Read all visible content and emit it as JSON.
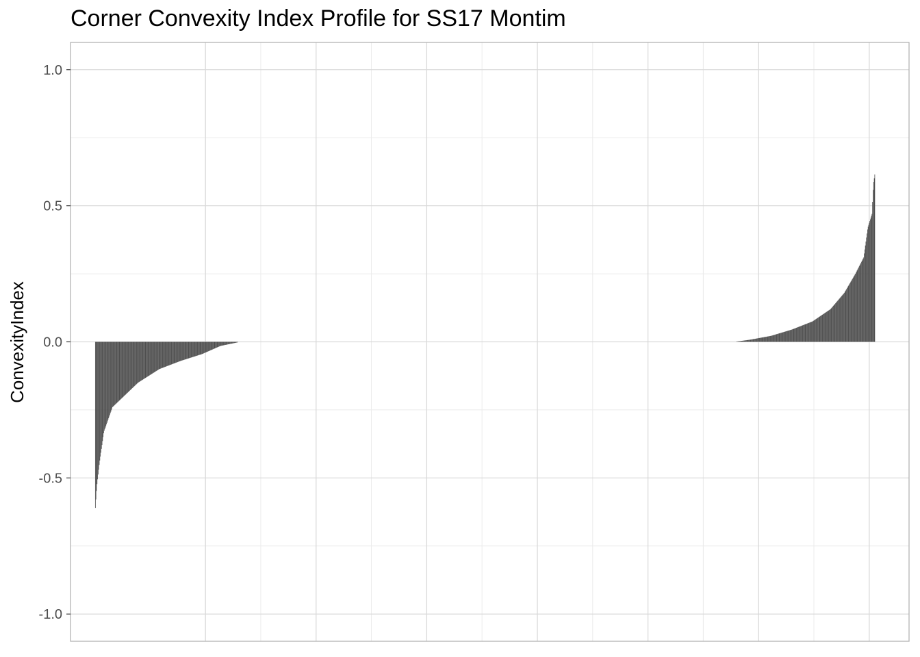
{
  "chart_data": {
    "type": "bar",
    "title": "Corner Convexity Index Profile for SS17 Montim",
    "xlabel": "",
    "ylabel": "ConvexityIndex",
    "ylim": [
      -1.1,
      1.1
    ],
    "xlim": [
      -44,
      1472
    ],
    "yticks": [
      -1.0,
      -0.5,
      0.0,
      0.5,
      1.0
    ],
    "ytick_labels": [
      "-1.0",
      "-0.5",
      "0.0",
      "0.5",
      "1.0"
    ],
    "x_gridlines": [
      200,
      400,
      600,
      800,
      1000,
      1200,
      1400
    ],
    "grid": true,
    "bar_color": "#4d4d4d",
    "x_count": 1410,
    "negative_segment": {
      "start_index": 1,
      "end_index": 258,
      "points": [
        [
          0,
          -0.61
        ],
        [
          0.01,
          -0.53
        ],
        [
          0.03,
          -0.44
        ],
        [
          0.06,
          -0.33
        ],
        [
          0.12,
          -0.24
        ],
        [
          0.2,
          -0.2
        ],
        [
          0.3,
          -0.15
        ],
        [
          0.45,
          -0.1
        ],
        [
          0.6,
          -0.07
        ],
        [
          0.75,
          -0.045
        ],
        [
          0.88,
          -0.015
        ],
        [
          1,
          -0.002
        ]
      ]
    },
    "positive_segment": {
      "start_index": 1160,
      "end_index": 1410,
      "points": [
        [
          0,
          0.001
        ],
        [
          0.1,
          0.008
        ],
        [
          0.25,
          0.022
        ],
        [
          0.4,
          0.045
        ],
        [
          0.55,
          0.075
        ],
        [
          0.68,
          0.12
        ],
        [
          0.78,
          0.18
        ],
        [
          0.86,
          0.25
        ],
        [
          0.92,
          0.31
        ],
        [
          0.95,
          0.42
        ],
        [
          0.98,
          0.47
        ],
        [
          0.99,
          0.58
        ],
        [
          1,
          0.615
        ]
      ]
    }
  }
}
